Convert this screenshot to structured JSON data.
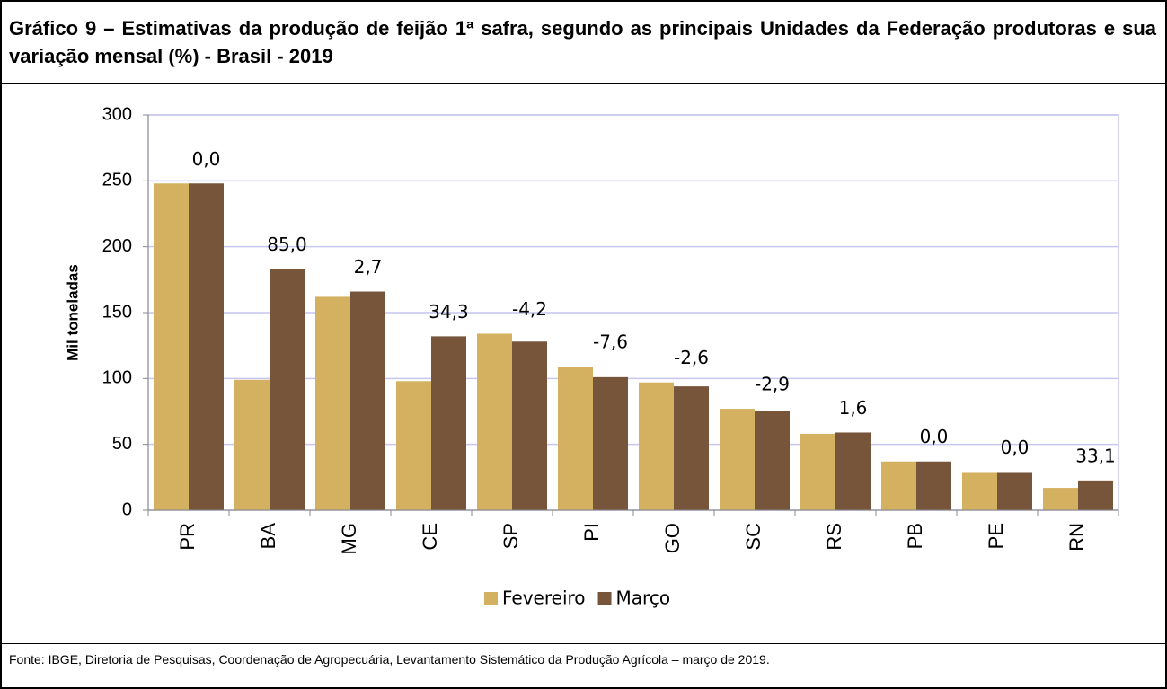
{
  "chart_data": {
    "type": "bar",
    "title": "Gráfico 9 – Estimativas da produção de feijão 1ª safra, segundo as principais Unidades da Federação produtoras e sua variação mensal (%) - Brasil - 2019",
    "y_label": "Mil toneladas",
    "categories": [
      "PR",
      "BA",
      "MG",
      "CE",
      "SP",
      "PI",
      "GO",
      "SC",
      "RS",
      "PB",
      "PE",
      "RN"
    ],
    "series": [
      {
        "name": "Fevereiro",
        "color": "#d4b161",
        "values": [
          248,
          99,
          162,
          98,
          134,
          109,
          97,
          77,
          58,
          37,
          29,
          17
        ]
      },
      {
        "name": "Março",
        "color": "#76553a",
        "values": [
          248,
          183,
          166,
          132,
          128,
          101,
          94,
          75,
          59,
          37,
          29,
          22.6
        ]
      }
    ],
    "variation_labels": [
      "0,0",
      "85,0",
      "2,7",
      "34,3",
      "-4,2",
      "-7,6",
      "-2,6",
      "-2,9",
      "1,6",
      "0,0",
      "0,0",
      "33,1"
    ],
    "ylim": [
      0,
      300
    ],
    "yticks": [
      0,
      50,
      100,
      150,
      200,
      250,
      300
    ],
    "grid": true,
    "source": "Fonte: IBGE, Diretoria de Pesquisas, Coordenação de Agropecuária, Levantamento Sistemático da Produção Agrícola – março de 2019."
  }
}
